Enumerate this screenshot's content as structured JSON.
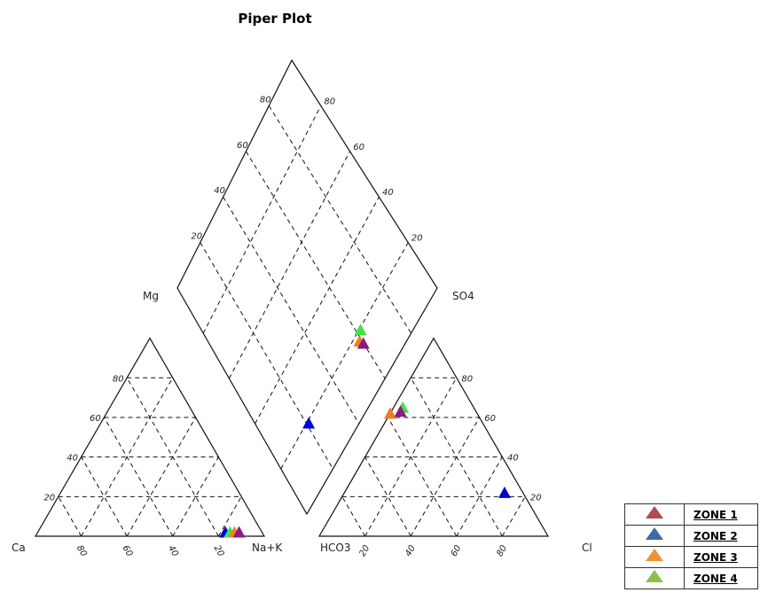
{
  "chart_data": {
    "type": "scatter",
    "title": "Piper Plot",
    "cation_labels": {
      "left": "Ca",
      "right": "Na+K",
      "top": "Mg"
    },
    "anion_labels": {
      "left": "HCO3",
      "right": "Cl",
      "top": "SO4"
    },
    "ticks": [
      "20",
      "40",
      "60",
      "80"
    ],
    "grid": true,
    "legend_position": "bottom-right",
    "series": [
      {
        "name": "ZONE 1",
        "color": "#8b1a89",
        "cation": {
          "ca": 0,
          "mg": 0,
          "nak": 0
        },
        "anion": {
          "hco3": 0,
          "so4": 0,
          "cl": 0
        }
      },
      {
        "name": "ZONE 2",
        "color": "#0000d0",
        "cation": {
          "ca": 0,
          "mg": 0,
          "nak": 0
        },
        "anion": {
          "hco3": 0,
          "so4": 0,
          "cl": 0
        }
      },
      {
        "name": "ZONE 3",
        "color": "#f07d1e",
        "cation": {
          "ca": 0,
          "mg": 0,
          "nak": 0
        },
        "anion": {
          "hco3": 0,
          "so4": 0,
          "cl": 0
        }
      },
      {
        "name": "ZONE 4",
        "color": "#44e044",
        "cation": {
          "ca": 0,
          "mg": 0,
          "nak": 0
        },
        "anion": {
          "hco3": 0,
          "so4": 0,
          "cl": 0
        }
      }
    ],
    "points": [
      {
        "series": "ZONE 2",
        "cation": {
          "ca": 16,
          "mg": 2,
          "nak": 82
        },
        "anion": {
          "hco3": 8,
          "so4": 22,
          "cl": 70
        }
      },
      {
        "series": "ZONE 4",
        "cation": {
          "ca": 14,
          "mg": 2,
          "nak": 84
        },
        "anion": {
          "hco3": 31,
          "so4": 65,
          "cl": 4
        }
      },
      {
        "series": "ZONE 3",
        "cation": {
          "ca": 12,
          "mg": 2,
          "nak": 86
        },
        "anion": {
          "hco3": 40,
          "so4": 62,
          "cl": 0
        }
      },
      {
        "series": "ZONE 1",
        "cation": {
          "ca": 10,
          "mg": 2,
          "nak": 88
        },
        "anion": {
          "hco3": 33,
          "so4": 63,
          "cl": 4
        }
      }
    ]
  },
  "legend": {
    "items": [
      {
        "label": "ZONE 1",
        "color": "#b04c52"
      },
      {
        "label": "ZONE 2",
        "color": "#3f6aaa"
      },
      {
        "label": "ZONE 3",
        "color": "#f0913a"
      },
      {
        "label": "ZONE 4",
        "color": "#8bc34a"
      }
    ]
  }
}
